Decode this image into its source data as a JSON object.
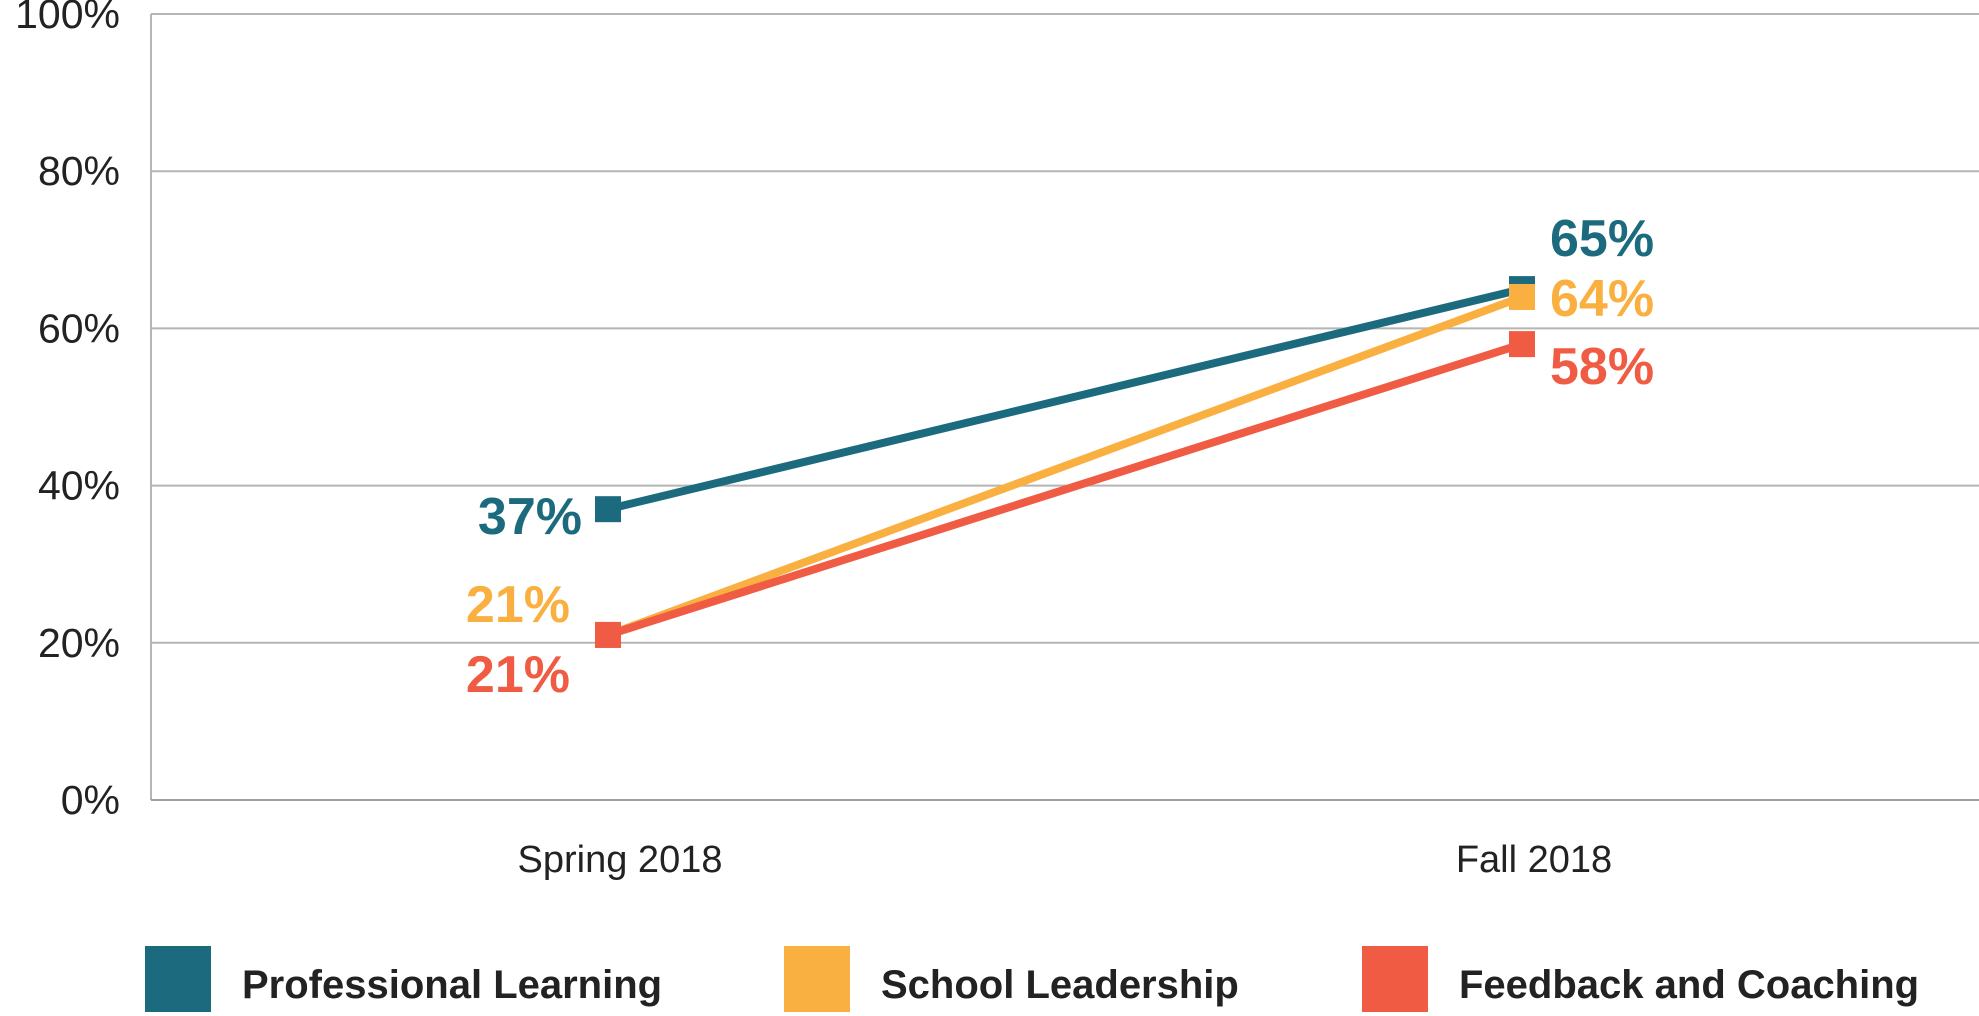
{
  "chart_data": {
    "type": "line",
    "categories": [
      "Spring 2018",
      "Fall 2018"
    ],
    "series": [
      {
        "name": "Professional Learning",
        "values": [
          37,
          65
        ],
        "color": "#1B6A7E",
        "labels": [
          "37%",
          "65%"
        ]
      },
      {
        "name": "School Leadership",
        "values": [
          21,
          64
        ],
        "color": "#F9B040",
        "labels": [
          "21%",
          "64%"
        ]
      },
      {
        "name": "Feedback and Coaching",
        "values": [
          21,
          58
        ],
        "color": "#EF5B43",
        "labels": [
          "21%",
          "58%"
        ]
      }
    ],
    "ylim": [
      0,
      100
    ],
    "yticks": [
      {
        "value": 0,
        "label": "0%"
      },
      {
        "value": 20,
        "label": "20%"
      },
      {
        "value": 40,
        "label": "40%"
      },
      {
        "value": 60,
        "label": "60%"
      },
      {
        "value": 80,
        "label": "80%"
      },
      {
        "value": 100,
        "label": "100%"
      }
    ],
    "grid": true,
    "legend": "bottom",
    "title": "",
    "xlabel": "",
    "ylabel": ""
  }
}
